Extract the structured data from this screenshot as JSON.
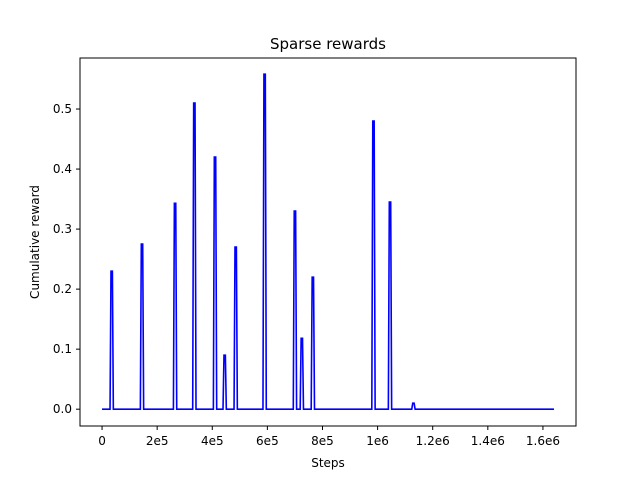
{
  "chart_data": {
    "type": "line",
    "title": "Sparse rewards",
    "xlabel": "Steps",
    "ylabel": "Cumulative reward",
    "xlim": [
      -80000,
      1720000
    ],
    "ylim": [
      -0.028,
      0.585
    ],
    "grid": false,
    "xticks": [
      {
        "value": 0,
        "label": "0"
      },
      {
        "value": 200000,
        "label": "2e5"
      },
      {
        "value": 400000,
        "label": "4e5"
      },
      {
        "value": 600000,
        "label": "6e5"
      },
      {
        "value": 800000,
        "label": "8e5"
      },
      {
        "value": 1000000,
        "label": "1e6"
      },
      {
        "value": 1200000,
        "label": "1.2e6"
      },
      {
        "value": 1400000,
        "label": "1.4e6"
      },
      {
        "value": 1600000,
        "label": "1.6e6"
      }
    ],
    "yticks": [
      {
        "value": 0.0,
        "label": "0.0"
      },
      {
        "value": 0.1,
        "label": "0.1"
      },
      {
        "value": 0.2,
        "label": "0.2"
      },
      {
        "value": 0.3,
        "label": "0.3"
      },
      {
        "value": 0.4,
        "label": "0.4"
      },
      {
        "value": 0.5,
        "label": "0.5"
      }
    ],
    "series": [
      {
        "color": "#0000ff",
        "baseline": 0.0,
        "x_start": 0,
        "x_end": 1640000,
        "spikes": [
          {
            "x": 35000,
            "y": 0.23
          },
          {
            "x": 145000,
            "y": 0.275
          },
          {
            "x": 265000,
            "y": 0.343
          },
          {
            "x": 335000,
            "y": 0.51
          },
          {
            "x": 410000,
            "y": 0.42
          },
          {
            "x": 445000,
            "y": 0.09
          },
          {
            "x": 485000,
            "y": 0.27
          },
          {
            "x": 590000,
            "y": 0.558
          },
          {
            "x": 700000,
            "y": 0.33
          },
          {
            "x": 725000,
            "y": 0.118
          },
          {
            "x": 765000,
            "y": 0.22
          },
          {
            "x": 985000,
            "y": 0.48
          },
          {
            "x": 1045000,
            "y": 0.345
          },
          {
            "x": 1130000,
            "y": 0.01
          }
        ]
      }
    ]
  }
}
